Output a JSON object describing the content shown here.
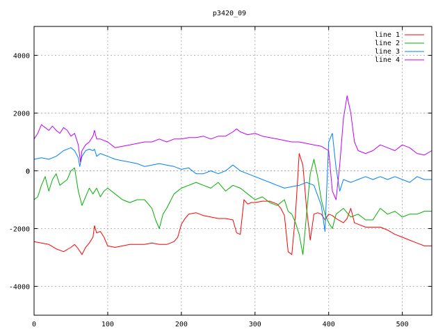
{
  "chart_data": {
    "type": "line",
    "title": "p3420_09",
    "xlabel": "",
    "ylabel": "",
    "xlim": [
      0,
      540
    ],
    "ylim": [
      -5000,
      5000
    ],
    "xticks": [
      0,
      100,
      200,
      300,
      400,
      500
    ],
    "yticks": [
      -4000,
      -2000,
      0,
      2000,
      4000
    ],
    "grid": true,
    "legend_position": "top-right",
    "series": [
      {
        "name": "line 1",
        "color": "#ff0000",
        "x": [
          0,
          10,
          20,
          30,
          40,
          50,
          55,
          60,
          65,
          70,
          75,
          80,
          82,
          85,
          90,
          95,
          100,
          110,
          120,
          130,
          140,
          150,
          160,
          170,
          180,
          185,
          190,
          195,
          200,
          205,
          210,
          220,
          230,
          240,
          250,
          260,
          270,
          275,
          280,
          285,
          290,
          295,
          300,
          310,
          320,
          330,
          335,
          340,
          345,
          350,
          355,
          360,
          365,
          370,
          375,
          380,
          385,
          390,
          395,
          400,
          405,
          410,
          420,
          425,
          430,
          435,
          440,
          450,
          460,
          470,
          480,
          490,
          500,
          510,
          520,
          530,
          540
        ],
        "y": [
          -2450,
          -2500,
          -2550,
          -2700,
          -2800,
          -2650,
          -2550,
          -2700,
          -2900,
          -2650,
          -2500,
          -2300,
          -1900,
          -2150,
          -2100,
          -2300,
          -2600,
          -2650,
          -2600,
          -2550,
          -2550,
          -2550,
          -2500,
          -2550,
          -2550,
          -2500,
          -2450,
          -2300,
          -1850,
          -1650,
          -1500,
          -1450,
          -1550,
          -1600,
          -1650,
          -1650,
          -1700,
          -2150,
          -2200,
          -1000,
          -1150,
          -1100,
          -1100,
          -1050,
          -1050,
          -1150,
          -1300,
          -1550,
          -2800,
          -2900,
          -1500,
          600,
          200,
          -1300,
          -2400,
          -1500,
          -1450,
          -1500,
          -1700,
          -1500,
          -1550,
          -1650,
          -1800,
          -1650,
          -1300,
          -1800,
          -1850,
          -1950,
          -1950,
          -1950,
          -2050,
          -2200,
          -2300,
          -2400,
          -2500,
          -2600,
          -2600
        ]
      },
      {
        "name": "line 2",
        "color": "#00b000",
        "x": [
          0,
          5,
          10,
          15,
          20,
          25,
          30,
          35,
          40,
          45,
          50,
          55,
          60,
          65,
          70,
          75,
          80,
          85,
          90,
          95,
          100,
          110,
          120,
          130,
          140,
          150,
          160,
          165,
          170,
          175,
          180,
          190,
          200,
          210,
          220,
          230,
          240,
          250,
          260,
          270,
          280,
          290,
          300,
          310,
          320,
          330,
          340,
          345,
          350,
          355,
          360,
          365,
          370,
          375,
          380,
          385,
          390,
          395,
          400,
          405,
          410,
          415,
          420,
          430,
          440,
          450,
          460,
          470,
          480,
          490,
          500,
          510,
          520,
          530,
          540
        ],
        "y": [
          -1000,
          -900,
          -500,
          -200,
          -700,
          -300,
          -100,
          -500,
          -400,
          -300,
          0,
          100,
          -700,
          -1200,
          -900,
          -600,
          -800,
          -600,
          -900,
          -700,
          -600,
          -800,
          -1000,
          -1100,
          -1000,
          -1000,
          -1300,
          -1700,
          -2000,
          -1500,
          -1300,
          -800,
          -600,
          -500,
          -400,
          -500,
          -600,
          -400,
          -700,
          -500,
          -600,
          -800,
          -1000,
          -900,
          -1100,
          -1200,
          -1000,
          -1400,
          -1500,
          -1800,
          -2200,
          -2900,
          -1500,
          -100,
          400,
          -200,
          -1000,
          -1500,
          -1800,
          -2000,
          -1500,
          -1400,
          -1300,
          -1600,
          -1500,
          -1700,
          -1700,
          -1300,
          -1500,
          -1400,
          -1600,
          -1500,
          -1500,
          -1400,
          -1400
        ]
      },
      {
        "name": "line 3",
        "color": "#0080ff",
        "x": [
          0,
          10,
          20,
          30,
          40,
          50,
          55,
          60,
          62,
          65,
          70,
          75,
          80,
          82,
          85,
          90,
          100,
          110,
          120,
          130,
          140,
          150,
          160,
          170,
          180,
          190,
          200,
          210,
          220,
          230,
          240,
          250,
          260,
          270,
          280,
          290,
          300,
          310,
          320,
          330,
          340,
          350,
          360,
          370,
          380,
          390,
          395,
          400,
          405,
          410,
          415,
          420,
          430,
          440,
          450,
          460,
          470,
          480,
          490,
          500,
          510,
          520,
          530,
          540
        ],
        "y": [
          400,
          450,
          400,
          500,
          700,
          800,
          700,
          450,
          150,
          500,
          700,
          750,
          700,
          750,
          500,
          600,
          500,
          400,
          350,
          300,
          250,
          150,
          200,
          250,
          200,
          150,
          50,
          100,
          -100,
          -100,
          0,
          -100,
          0,
          200,
          0,
          -100,
          -200,
          -300,
          -400,
          -500,
          -600,
          -550,
          -500,
          -400,
          -500,
          -1200,
          -2100,
          1000,
          1300,
          100,
          -700,
          -300,
          -400,
          -300,
          -200,
          -300,
          -200,
          -300,
          -200,
          -300,
          -400,
          -200,
          -300,
          -300
        ]
      },
      {
        "name": "line 4",
        "color": "#c000ff",
        "x": [
          0,
          5,
          10,
          15,
          20,
          25,
          30,
          35,
          40,
          45,
          50,
          55,
          60,
          63,
          65,
          70,
          75,
          80,
          82,
          85,
          90,
          100,
          110,
          120,
          130,
          140,
          150,
          160,
          170,
          180,
          190,
          200,
          210,
          220,
          230,
          240,
          250,
          260,
          270,
          275,
          280,
          290,
          300,
          310,
          320,
          330,
          340,
          350,
          360,
          370,
          380,
          390,
          400,
          405,
          410,
          415,
          420,
          425,
          430,
          435,
          440,
          450,
          460,
          470,
          480,
          490,
          500,
          510,
          520,
          530,
          540
        ],
        "y": [
          1100,
          1300,
          1600,
          1500,
          1400,
          1550,
          1400,
          1300,
          1500,
          1400,
          1200,
          1300,
          900,
          300,
          700,
          900,
          1000,
          1200,
          1400,
          1100,
          1100,
          1000,
          800,
          850,
          900,
          950,
          1000,
          1000,
          1100,
          1000,
          1100,
          1100,
          1150,
          1150,
          1200,
          1100,
          1200,
          1200,
          1350,
          1450,
          1350,
          1250,
          1300,
          1200,
          1150,
          1100,
          1050,
          1000,
          1000,
          950,
          900,
          850,
          700,
          -700,
          -1000,
          200,
          1800,
          2600,
          2000,
          1000,
          700,
          600,
          700,
          900,
          800,
          700,
          900,
          800,
          600,
          550,
          700
        ]
      }
    ]
  }
}
